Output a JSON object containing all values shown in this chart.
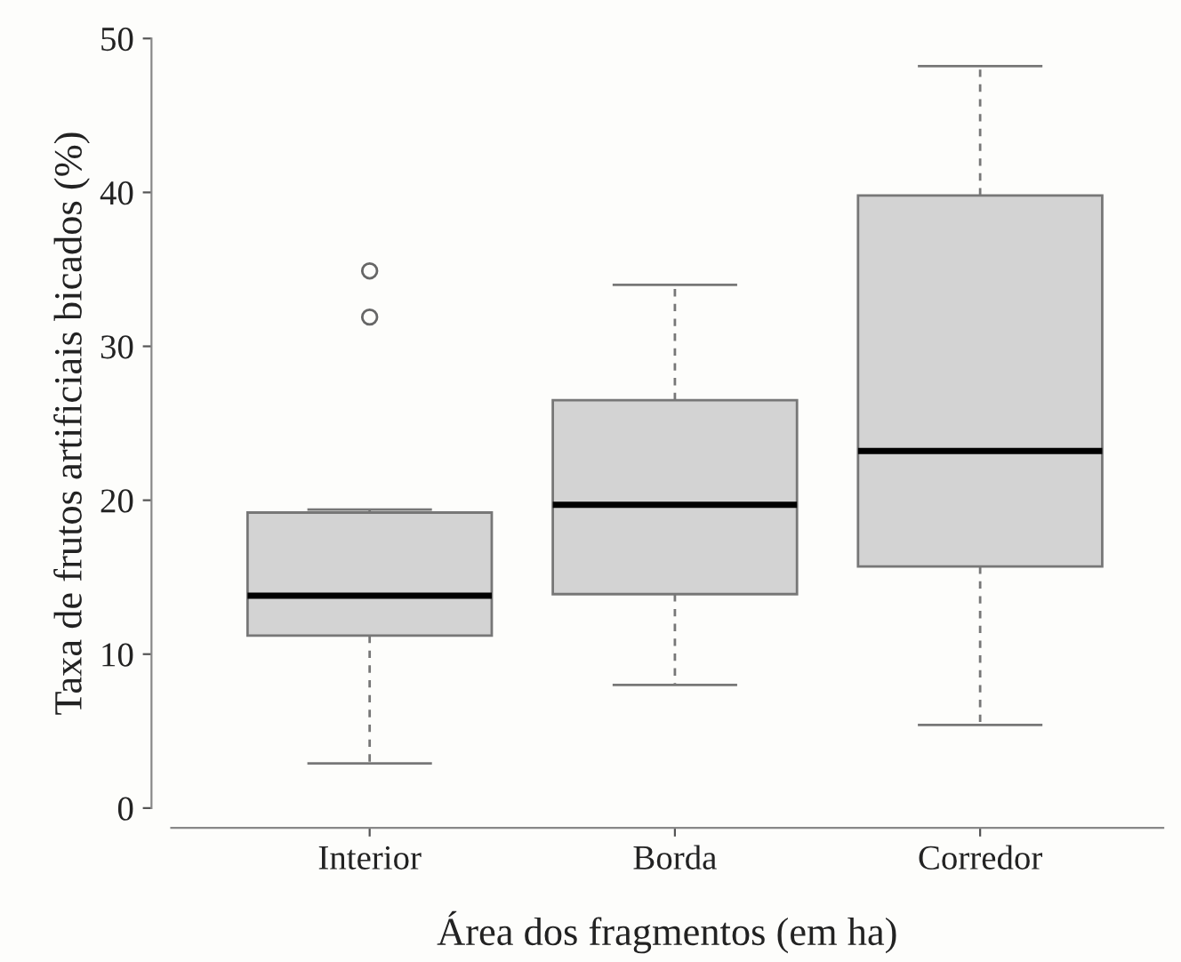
{
  "chart_data": {
    "type": "box",
    "xlabel": "Área dos fragmentos (em ha)",
    "ylabel": "Taxa de frutos artificiais bicados (%)",
    "categories": [
      "Interior",
      "Borda",
      "Corredor"
    ],
    "color": "#d3d3d3",
    "boxes": [
      {
        "low": 2.9,
        "q1": 11.2,
        "median": 13.8,
        "q3": 19.2,
        "high": 19.4,
        "outliers": [
          31.9,
          34.9
        ]
      },
      {
        "low": 8.0,
        "q1": 13.9,
        "median": 19.7,
        "q3": 26.5,
        "high": 34.0
      },
      {
        "low": 5.4,
        "q1": 15.7,
        "median": 23.2,
        "q3": 39.8,
        "high": 48.2
      }
    ],
    "ylim": [
      0,
      50
    ],
    "yticks": [
      0,
      10,
      20,
      30,
      40,
      50
    ],
    "grid": false,
    "legend": false
  }
}
